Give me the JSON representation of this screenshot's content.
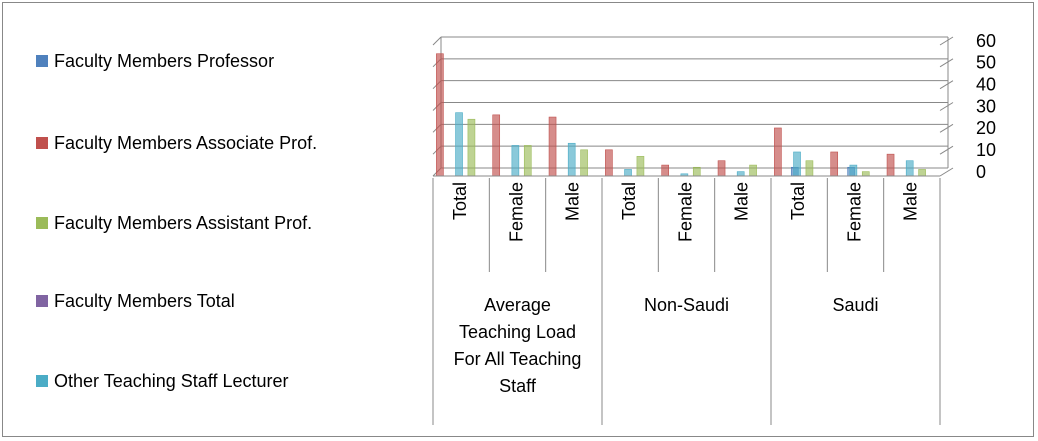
{
  "chart_data": {
    "type": "bar",
    "groups": [
      {
        "name": "Average Teaching Load For All Teaching Staff",
        "categories": [
          "Total",
          "Female",
          "Male"
        ]
      },
      {
        "name": "Non-Saudi",
        "categories": [
          "Total",
          "Female",
          "Male"
        ]
      },
      {
        "name": "Saudi",
        "categories": [
          "Total",
          "Female",
          "Male"
        ]
      }
    ],
    "series": [
      {
        "name": "Faculty Members  Professor",
        "color": "#4f81bd",
        "values": [
          0,
          0,
          0,
          0,
          0,
          0,
          4,
          4,
          0
        ]
      },
      {
        "name": "Faculty Members  Associate Prof.",
        "color": "#c0504d",
        "values": [
          56,
          28,
          27,
          12,
          5,
          7,
          22,
          11,
          10
        ]
      },
      {
        "name": "Faculty Members  Assistant Prof.",
        "color": "#9bbb59",
        "values": [
          26,
          14,
          12,
          9,
          4,
          5,
          7,
          2,
          3
        ]
      },
      {
        "name": "Faculty Members  Total",
        "color": "#8064a2",
        "values": [
          0,
          0,
          0,
          0,
          0,
          0,
          0,
          0,
          0
        ]
      },
      {
        "name": "Other Teaching Staff Lecturer",
        "color": "#4bacc6",
        "values": [
          29,
          14,
          15,
          3,
          1,
          2,
          11,
          5,
          7
        ]
      }
    ],
    "ylim": [
      0,
      60
    ],
    "yticks": [
      0,
      10,
      20,
      30,
      40,
      50,
      60
    ],
    "grid": true
  }
}
